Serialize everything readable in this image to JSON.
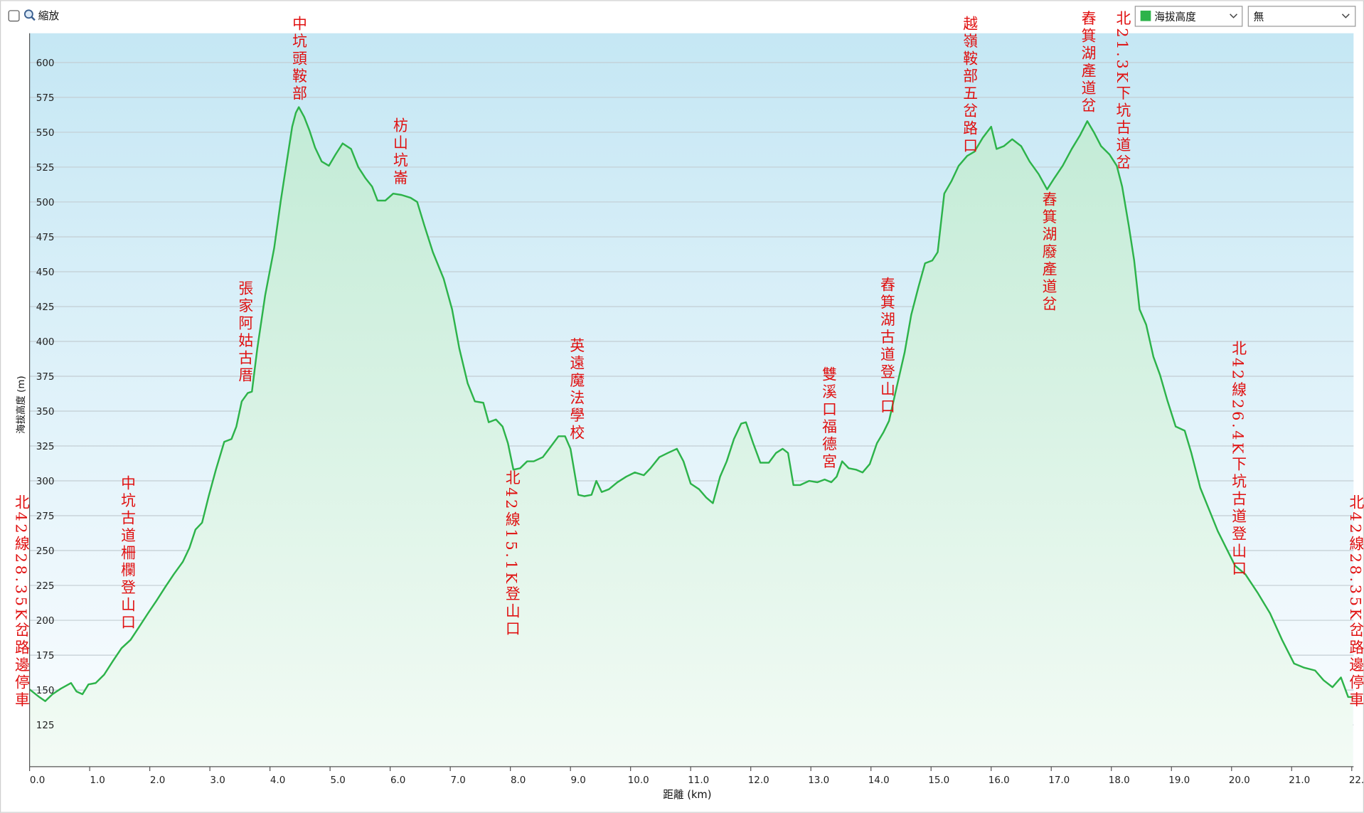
{
  "toolbar": {
    "zoom_label": "縮放",
    "secondary_select": "無"
  },
  "chart_data": {
    "type": "line",
    "x_label": "距離 (km)",
    "y_label": "海拔高度 (m)",
    "x": [
      0,
      0.16,
      0.26,
      0.38,
      0.52,
      0.69,
      0.78,
      0.88,
      0.98,
      1.1,
      1.24,
      1.39,
      1.53,
      1.68,
      1.82,
      1.97,
      2.11,
      2.26,
      2.4,
      2.55,
      2.66,
      2.76,
      2.87,
      2.98,
      3.1,
      3.24,
      3.36,
      3.44,
      3.53,
      3.63,
      3.7,
      3.79,
      3.92,
      4.07,
      4.18,
      4.28,
      4.37,
      4.43,
      4.48,
      4.57,
      4.66,
      4.75,
      4.86,
      4.98,
      5.09,
      5.21,
      5.35,
      5.47,
      5.59,
      5.7,
      5.79,
      5.92,
      6.05,
      6.19,
      6.34,
      6.45,
      6.57,
      6.71,
      6.89,
      7.03,
      7.15,
      7.29,
      7.41,
      7.55,
      7.64,
      7.76,
      7.87,
      7.96,
      8.05,
      8.16,
      8.28,
      8.39,
      8.54,
      8.68,
      8.8,
      8.91,
      9.0,
      9.06,
      9.13,
      9.23,
      9.35,
      9.43,
      9.52,
      9.64,
      9.78,
      9.93,
      10.07,
      10.22,
      10.33,
      10.48,
      10.62,
      10.77,
      10.88,
      11.0,
      11.14,
      11.26,
      11.37,
      11.49,
      11.6,
      11.72,
      11.84,
      11.92,
      12.04,
      12.16,
      12.3,
      12.42,
      12.53,
      12.62,
      12.71,
      12.82,
      12.97,
      13.11,
      13.23,
      13.34,
      13.43,
      13.52,
      13.63,
      13.75,
      13.86,
      13.98,
      14.1,
      14.21,
      14.3,
      14.41,
      14.56,
      14.67,
      14.79,
      14.9,
      15.02,
      15.11,
      15.22,
      15.34,
      15.46,
      15.6,
      15.72,
      15.86,
      16.0,
      16.09,
      16.21,
      16.35,
      16.5,
      16.64,
      16.79,
      16.93,
      17.05,
      17.19,
      17.34,
      17.48,
      17.6,
      17.71,
      17.83,
      17.97,
      18.09,
      18.18,
      18.29,
      18.38,
      18.47,
      18.58,
      18.7,
      18.81,
      18.93,
      19.07,
      19.22,
      19.33,
      19.48,
      19.62,
      19.77,
      19.91,
      20.06,
      20.23,
      20.43,
      20.64,
      20.84,
      21.04,
      21.21,
      21.39,
      21.53,
      21.68,
      21.82,
      21.94,
      22.02
    ],
    "series": [
      {
        "name": "海拔高度",
        "color": "#2db34a",
        "values": [
          150.5,
          145,
          142,
          147,
          151,
          155,
          149,
          147,
          154,
          155,
          161,
          171,
          180,
          186,
          195,
          205,
          214,
          224,
          233,
          242,
          252,
          265,
          270,
          289,
          308,
          328,
          330,
          339,
          357,
          363,
          364,
          395,
          433,
          467,
          501,
          529,
          554,
          564,
          568,
          561,
          551,
          539,
          529,
          526,
          534,
          542,
          538,
          525,
          517,
          511,
          501,
          501,
          506,
          505,
          503,
          500,
          483,
          464,
          445,
          423,
          395,
          370,
          357,
          356,
          342,
          344,
          339,
          327,
          308,
          309,
          314,
          314,
          317,
          325,
          332,
          332,
          323,
          308,
          290,
          289,
          290,
          300,
          292,
          294,
          299,
          303,
          306,
          304,
          309,
          317,
          320,
          323,
          314,
          298,
          294,
          288,
          284,
          303,
          314,
          330,
          341,
          342,
          327,
          313,
          313,
          320,
          323,
          320,
          297,
          297,
          300,
          299,
          301,
          299,
          303,
          314,
          309,
          308,
          306,
          312,
          327,
          335,
          343,
          364,
          392,
          419,
          439,
          456,
          458,
          464,
          506,
          515,
          526,
          533,
          536,
          546,
          554,
          538,
          540,
          545,
          540,
          529,
          520,
          509,
          517,
          526,
          538,
          548,
          558,
          550,
          540,
          534,
          526,
          511,
          483,
          458,
          423,
          412,
          389,
          376,
          358,
          339,
          336,
          320,
          295,
          280,
          264,
          252,
          239,
          233,
          220,
          205,
          186,
          169,
          166,
          164,
          157,
          152,
          159,
          145,
          145
        ]
      }
    ],
    "xlim": [
      0,
      22.03
    ],
    "ylim": [
      95,
      621
    ],
    "xticks": [
      {
        "value": 0,
        "label": "0.0"
      },
      {
        "value": 1,
        "label": "1.0"
      },
      {
        "value": 2,
        "label": "2.0"
      },
      {
        "value": 3,
        "label": "3.0"
      },
      {
        "value": 4,
        "label": "4.0"
      },
      {
        "value": 5,
        "label": "5.0"
      },
      {
        "value": 6,
        "label": "6.0"
      },
      {
        "value": 7,
        "label": "7.0"
      },
      {
        "value": 8,
        "label": "8.0"
      },
      {
        "value": 9,
        "label": "9.0"
      },
      {
        "value": 10,
        "label": "10.0"
      },
      {
        "value": 11,
        "label": "11.0"
      },
      {
        "value": 12,
        "label": "12.0"
      },
      {
        "value": 13,
        "label": "13.0"
      },
      {
        "value": 14,
        "label": "14.0"
      },
      {
        "value": 15,
        "label": "15.0"
      },
      {
        "value": 16,
        "label": "16.0"
      },
      {
        "value": 17,
        "label": "17.0"
      },
      {
        "value": 18,
        "label": "18.0"
      },
      {
        "value": 19,
        "label": "19.0"
      },
      {
        "value": 20,
        "label": "20.0"
      },
      {
        "value": 21,
        "label": "21.0"
      },
      {
        "value": 22,
        "label": "22.0"
      }
    ],
    "yticks": [
      125,
      150,
      175,
      200,
      225,
      250,
      275,
      300,
      325,
      350,
      375,
      400,
      425,
      450,
      475,
      500,
      525,
      550,
      575,
      600
    ],
    "grid": true,
    "annotations": [
      "北42線28.35K岔路邊停車",
      "中坑古道柵欄登山口",
      "張家阿姑古厝",
      "中坑頭鞍部",
      "枋山坑崙",
      "北42線15.1K登山口",
      "英遠魔法學校",
      "雙溪口福德宮",
      "舂箕湖古道登山口",
      "越嶺鞍部五岔路口",
      "舂箕湖廢產道岔",
      "舂箕湖產道岔",
      "北21.3K下坑古道岔",
      "北42線26.4K下坑古道登山口",
      "北42線28.35K岔路邊停車"
    ]
  }
}
